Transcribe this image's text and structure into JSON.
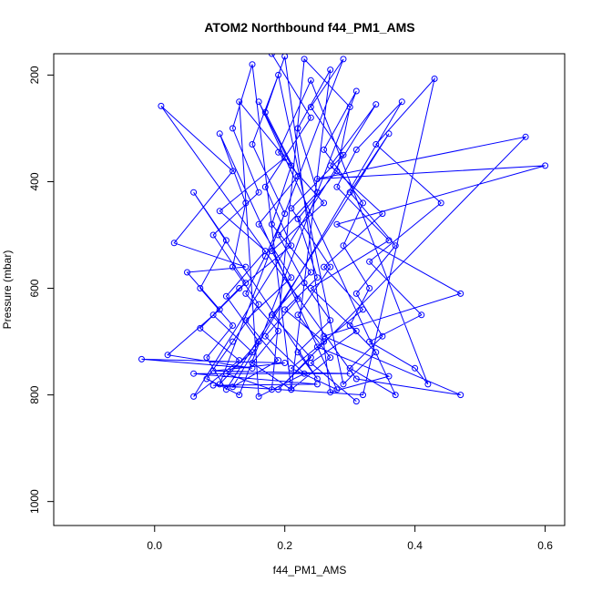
{
  "chart_data": {
    "type": "line",
    "title": "ATOM2 Northbound f44_PM1_AMS",
    "xlabel": "f44_PM1_AMS",
    "ylabel": "Pressure (mbar)",
    "xlim": [
      -0.155,
      0.63
    ],
    "ylim": [
      1045,
      160
    ],
    "y_reversed": true,
    "x_ticks": [
      0.0,
      0.2,
      0.4,
      0.6
    ],
    "x_tick_labels": [
      "0.0",
      "0.2",
      "0.4",
      "0.6"
    ],
    "y_ticks": [
      200,
      400,
      600,
      800,
      1000
    ],
    "y_tick_labels": [
      "200",
      "400",
      "600",
      "800",
      "1000"
    ],
    "grid": false,
    "legend": "none",
    "markers": "open-circle",
    "color": "#0000ff",
    "series": [
      {
        "points": [
          [
            0.18,
            160
          ],
          [
            0.24,
            280
          ],
          [
            0.17,
            410
          ],
          [
            0.21,
            520
          ],
          [
            0.13,
            600
          ],
          [
            0.09,
            650
          ],
          [
            0.15,
            720
          ],
          [
            0.11,
            760
          ],
          [
            0.18,
            790
          ],
          [
            0.23,
            170
          ],
          [
            0.3,
            260
          ],
          [
            0.28,
            380
          ],
          [
            0.22,
            470
          ],
          [
            0.25,
            580
          ],
          [
            0.2,
            640
          ],
          [
            0.26,
            700
          ],
          [
            0.21,
            750
          ],
          [
            0.28,
            790
          ],
          [
            0.1,
            310
          ],
          [
            0.14,
            440
          ],
          [
            0.12,
            560
          ],
          [
            0.16,
            630
          ],
          [
            0.12,
            700
          ],
          [
            0.08,
            770
          ],
          [
            0.13,
            800
          ],
          [
            0.31,
            230
          ],
          [
            0.26,
            340
          ],
          [
            0.32,
            440
          ],
          [
            0.29,
            520
          ],
          [
            0.33,
            600
          ],
          [
            0.3,
            670
          ],
          [
            0.34,
            720
          ],
          [
            0.29,
            780
          ],
          [
            0.19,
            200
          ],
          [
            0.15,
            330
          ],
          [
            0.2,
            460
          ],
          [
            0.17,
            540
          ],
          [
            0.14,
            610
          ],
          [
            0.19,
            680
          ],
          [
            0.15,
            740
          ],
          [
            0.21,
            790
          ],
          [
            0.27,
            190
          ],
          [
            0.22,
            300
          ],
          [
            0.25,
            420
          ],
          [
            0.19,
            500
          ],
          [
            0.23,
            590
          ],
          [
            0.27,
            660
          ],
          [
            0.22,
            720
          ],
          [
            0.25,
            770
          ],
          [
            0.06,
            420
          ],
          [
            0.11,
            510
          ],
          [
            0.07,
            600
          ],
          [
            0.12,
            670
          ],
          [
            0.08,
            730
          ],
          [
            0.11,
            790
          ],
          [
            0.36,
            310
          ],
          [
            0.3,
            420
          ],
          [
            0.37,
            520
          ],
          [
            0.31,
            610
          ],
          [
            0.35,
            690
          ],
          [
            0.3,
            750
          ],
          [
            0.37,
            800
          ],
          [
            0.16,
            250
          ],
          [
            0.21,
            370
          ],
          [
            0.18,
            480
          ],
          [
            0.24,
            570
          ],
          [
            0.18,
            650
          ],
          [
            0.24,
            730
          ],
          [
            0.19,
            790
          ],
          [
            0.57,
            316
          ],
          [
            0.25,
            395
          ],
          [
            0.6,
            370
          ],
          [
            0.28,
            480
          ],
          [
            0.47,
            610
          ],
          [
            0.26,
            690
          ],
          [
            0.47,
            800
          ],
          [
            0.31,
            770
          ],
          [
            0.01,
            258
          ],
          [
            0.12,
            380
          ],
          [
            0.03,
            515
          ],
          [
            0.14,
            560
          ],
          [
            0.05,
            570
          ],
          [
            0.1,
            640
          ],
          [
            0.02,
            725
          ],
          [
            0.15,
            750
          ],
          [
            -0.02,
            733
          ],
          [
            0.2,
            740
          ],
          [
            0.09,
            755
          ],
          [
            0.3,
            760
          ],
          [
            0.06,
            760
          ],
          [
            0.25,
            780
          ],
          [
            0.09,
            782
          ],
          [
            0.32,
            800
          ],
          [
            0.43,
            207
          ],
          [
            0.34,
            330
          ],
          [
            0.44,
            440
          ],
          [
            0.33,
            550
          ],
          [
            0.41,
            650
          ],
          [
            0.33,
            700
          ],
          [
            0.4,
            750
          ],
          [
            0.42,
            780
          ],
          [
            0.24,
            210
          ],
          [
            0.19,
            345
          ],
          [
            0.26,
            440
          ],
          [
            0.18,
            530
          ],
          [
            0.22,
            620
          ],
          [
            0.17,
            690
          ],
          [
            0.23,
            760
          ],
          [
            0.16,
            803
          ],
          [
            0.13,
            250
          ],
          [
            0.2,
            355
          ],
          [
            0.1,
            455
          ],
          [
            0.17,
            530
          ],
          [
            0.11,
            615
          ],
          [
            0.16,
            700
          ],
          [
            0.1,
            780
          ],
          [
            0.29,
            170
          ],
          [
            0.24,
            260
          ],
          [
            0.29,
            350
          ],
          [
            0.21,
            450
          ],
          [
            0.27,
            560
          ],
          [
            0.22,
            650
          ],
          [
            0.27,
            730
          ],
          [
            0.21,
            790
          ],
          [
            0.15,
            180
          ],
          [
            0.12,
            300
          ],
          [
            0.16,
            420
          ],
          [
            0.09,
            500
          ],
          [
            0.14,
            590
          ],
          [
            0.07,
            675
          ],
          [
            0.13,
            735
          ],
          [
            0.06,
            803
          ],
          [
            0.34,
            255
          ],
          [
            0.27,
            370
          ],
          [
            0.35,
            460
          ],
          [
            0.26,
            560
          ],
          [
            0.32,
            640
          ],
          [
            0.25,
            710
          ],
          [
            0.36,
            765
          ],
          [
            0.27,
            795
          ],
          [
            0.2,
            165
          ],
          [
            0.17,
            270
          ],
          [
            0.22,
            390
          ],
          [
            0.16,
            480
          ],
          [
            0.21,
            580
          ],
          [
            0.14,
            660
          ],
          [
            0.19,
            735
          ],
          [
            0.12,
            785
          ],
          [
            0.38,
            250
          ],
          [
            0.31,
            340
          ],
          [
            0.28,
            410
          ],
          [
            0.36,
            510
          ],
          [
            0.24,
            600
          ],
          [
            0.31,
            680
          ],
          [
            0.24,
            740
          ],
          [
            0.31,
            812
          ]
        ]
      }
    ]
  }
}
